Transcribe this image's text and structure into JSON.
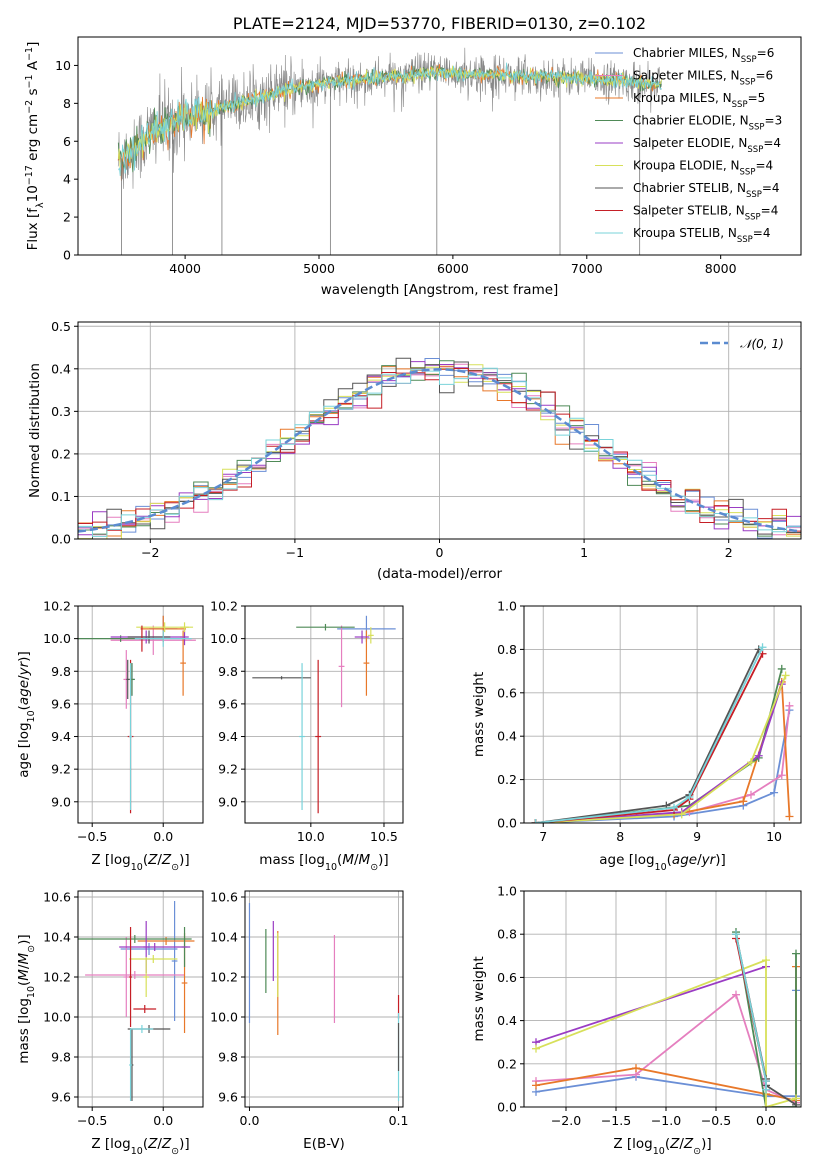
{
  "colors": {
    "chabrier_miles": "#6b8fd6",
    "salpeter_miles": "#e57fbf",
    "kroupa_miles": "#e8782a",
    "chabrier_elodie": "#4f8a57",
    "salpeter_elodie": "#9a3cc4",
    "kroupa_elodie": "#d7e05a",
    "chabrier_stelib": "#555555",
    "salpeter_stelib": "#c51f26",
    "kroupa_stelib": "#79d3da",
    "gauss": "#5b8bd0"
  },
  "chart_data": [
    {
      "id": "spectrum",
      "type": "line",
      "title": "PLATE=2124, MJD=53770, FIBERID=0130, z=0.102",
      "xlabel": "wavelength [Angstrom, rest frame]",
      "ylabel": "Flux [f_λ10^-17 erg cm^-2 s^-1 A^-1]",
      "xlim": [
        3200,
        8600
      ],
      "ylim": [
        0,
        11.5
      ],
      "xticks": [
        4000,
        5000,
        6000,
        7000,
        8000
      ],
      "yticks": [
        0,
        2,
        4,
        6,
        8,
        10
      ],
      "legend_position": "right",
      "legend": [
        {
          "label": "Chabrier MILES, N",
          "sub": "SSP",
          "n": "6"
        },
        {
          "label": "Salpeter MILES, N",
          "sub": "SSP",
          "n": "6"
        },
        {
          "label": "Kroupa MILES, N",
          "sub": "SSP",
          "n": "5"
        },
        {
          "label": "Chabrier ELODIE, N",
          "sub": "SSP",
          "n": "3"
        },
        {
          "label": "Salpeter ELODIE, N",
          "sub": "SSP",
          "n": "4"
        },
        {
          "label": "Kroupa ELODIE, N",
          "sub": "SSP",
          "n": "4"
        },
        {
          "label": "Chabrier STELIB, N",
          "sub": "SSP",
          "n": "4"
        },
        {
          "label": "Salpeter STELIB, N",
          "sub": "SSP",
          "n": "4"
        },
        {
          "label": "Kroupa STELIB, N",
          "sub": "SSP",
          "n": "4"
        }
      ],
      "continuum": [
        [
          3500,
          5.0
        ],
        [
          3600,
          5.4
        ],
        [
          3700,
          6.1
        ],
        [
          3800,
          6.8
        ],
        [
          3900,
          6.8
        ],
        [
          4000,
          7.4
        ],
        [
          4200,
          7.6
        ],
        [
          4400,
          8.0
        ],
        [
          4600,
          8.4
        ],
        [
          4800,
          8.8
        ],
        [
          5000,
          9.0
        ],
        [
          5200,
          9.2
        ],
        [
          5400,
          9.3
        ],
        [
          5600,
          9.4
        ],
        [
          5800,
          9.6
        ],
        [
          6000,
          9.6
        ],
        [
          6200,
          9.5
        ],
        [
          6400,
          9.5
        ],
        [
          6600,
          9.4
        ],
        [
          6800,
          9.4
        ],
        [
          7000,
          9.3
        ],
        [
          7200,
          9.2
        ],
        [
          7400,
          9.1
        ],
        [
          7550,
          9.0
        ]
      ],
      "absorption_dips": [
        3525,
        3905,
        4275,
        5085,
        5880,
        6800,
        7395
      ]
    },
    {
      "id": "residuals",
      "type": "histogram",
      "xlabel": "(data-model)/error",
      "ylabel": "Normed distribution",
      "xlim": [
        -2.5,
        2.5
      ],
      "ylim": [
        0,
        0.51
      ],
      "xticks": [
        -2,
        -1,
        0,
        1,
        2
      ],
      "xtick_labels": [
        "−2",
        "−1",
        "0",
        "1",
        "2"
      ],
      "yticks": [
        0.0,
        0.1,
        0.2,
        0.3,
        0.4,
        0.5
      ],
      "ytick_labels": [
        "0.0",
        "0.1",
        "0.2",
        "0.3",
        "0.4",
        "0.5"
      ],
      "bin_width": 0.1,
      "legend": [
        {
          "label": "𝒩(0, 1)"
        }
      ],
      "legend_position": "top-right",
      "gaussian": {
        "mean": 0,
        "sigma": 1
      }
    },
    {
      "id": "age_vs_Z",
      "type": "errorbar",
      "xlabel": "Z [log10(Z/Z⊙)]",
      "ylabel": "age [log10(age/yr)]",
      "xlim": [
        -0.6,
        0.28
      ],
      "ylim": [
        8.87,
        10.2
      ],
      "xticks": [
        -0.5,
        0.0
      ],
      "xtick_labels": [
        "−0.5",
        "0.0"
      ],
      "yticks": [
        9.0,
        9.2,
        9.4,
        9.6,
        9.8,
        10.0,
        10.2
      ],
      "ytick_labels": [
        "9.0",
        "9.2",
        "9.4",
        "9.6",
        "9.8",
        "10.0",
        "10.2"
      ],
      "points": [
        {
          "s": "chabrier_miles",
          "x": 0.0,
          "xe": 0.1,
          "y": 10.06,
          "ye": 0.08
        },
        {
          "s": "chabrier_miles",
          "x": -0.22,
          "xe": 0.02,
          "y": 9.75,
          "ye": 0.1
        },
        {
          "s": "salpeter_miles",
          "x": -0.07,
          "xe": 0.3,
          "y": 9.99,
          "ye": 0.09
        },
        {
          "s": "salpeter_miles",
          "x": -0.26,
          "xe": 0.02,
          "y": 9.75,
          "ye": 0.18
        },
        {
          "s": "kroupa_miles",
          "x": 0.0,
          "xe": 0.16,
          "y": 10.06,
          "ye": 0.08
        },
        {
          "s": "kroupa_miles",
          "x": 0.14,
          "xe": 0.02,
          "y": 9.85,
          "ye": 0.2
        },
        {
          "s": "chabrier_elodie",
          "x": -0.22,
          "xe": 0.02,
          "y": 9.75,
          "ye": 0.1
        },
        {
          "s": "chabrier_elodie",
          "x": -0.3,
          "xe": 0.3,
          "y": 10.0,
          "ye": 0.02
        },
        {
          "s": "salpeter_elodie",
          "x": -0.12,
          "xe": 0.25,
          "y": 10.01,
          "ye": 0.04
        },
        {
          "s": "salpeter_elodie",
          "x": 0.15,
          "xe": 0.03,
          "y": 10.01,
          "ye": 0.05
        },
        {
          "s": "kroupa_elodie",
          "x": 0.01,
          "xe": 0.2,
          "y": 10.07,
          "ye": 0.03
        },
        {
          "s": "kroupa_elodie",
          "x": 0.15,
          "xe": 0.03,
          "y": 10.07,
          "ye": 0.03
        },
        {
          "s": "chabrier_stelib",
          "x": -0.25,
          "xe": 0.01,
          "y": 9.75,
          "ye": 0.12
        },
        {
          "s": "chabrier_stelib",
          "x": -0.1,
          "xe": 0.15,
          "y": 10.01,
          "ye": 0.04
        },
        {
          "s": "salpeter_stelib",
          "x": -0.23,
          "xe": 0.02,
          "y": 9.4,
          "ye": 0.47
        },
        {
          "s": "salpeter_stelib",
          "x": -0.15,
          "xe": 0.02,
          "y": 10.0,
          "ye": 0.08
        },
        {
          "s": "kroupa_stelib",
          "x": -0.23,
          "xe": 0.01,
          "y": 9.4,
          "ye": 0.45
        },
        {
          "s": "kroupa_stelib",
          "x": 0.0,
          "xe": 0.2,
          "y": 10.0,
          "ye": 0.05
        }
      ]
    },
    {
      "id": "age_vs_mass",
      "type": "errorbar",
      "xlabel": "mass [log10(M/M⊙)]",
      "xlim": [
        9.55,
        10.63
      ],
      "ylim": [
        8.87,
        10.2
      ],
      "xticks": [
        10.0,
        10.5
      ],
      "xtick_labels": [
        "10.0",
        "10.5"
      ],
      "yticks": [
        9.0,
        9.2,
        9.4,
        9.6,
        9.8,
        10.0,
        10.2
      ],
      "ytick_labels": [
        "9.0",
        "9.2",
        "9.4",
        "9.6",
        "9.8",
        "10.0",
        "10.2"
      ],
      "points": [
        {
          "s": "chabrier_miles",
          "x": 10.38,
          "xe": 0.2,
          "y": 10.06,
          "ye": 0.08
        },
        {
          "s": "salpeter_miles",
          "x": 10.21,
          "xe": 0.02,
          "y": 9.83,
          "ye": 0.25
        },
        {
          "s": "kroupa_miles",
          "x": 10.38,
          "xe": 0.02,
          "y": 9.85,
          "ye": 0.2
        },
        {
          "s": "chabrier_elodie",
          "x": 10.1,
          "xe": 0.2,
          "y": 10.07,
          "ye": 0.02
        },
        {
          "s": "salpeter_elodie",
          "x": 10.35,
          "xe": 0.05,
          "y": 10.01,
          "ye": 0.04
        },
        {
          "s": "kroupa_elodie",
          "x": 10.41,
          "xe": 0.02,
          "y": 10.02,
          "ye": 0.05
        },
        {
          "s": "chabrier_stelib",
          "x": 9.8,
          "xe": 0.2,
          "y": 9.76,
          "ye": 0.01
        },
        {
          "s": "salpeter_stelib",
          "x": 10.05,
          "xe": 0.02,
          "y": 9.4,
          "ye": 0.47
        },
        {
          "s": "kroupa_stelib",
          "x": 9.94,
          "xe": 0.02,
          "y": 9.4,
          "ye": 0.45
        }
      ]
    },
    {
      "id": "mass_weight_vs_age",
      "type": "line",
      "xlabel": "age [log10(age/yr)]",
      "ylabel": "mass weight",
      "xlim": [
        6.75,
        10.35
      ],
      "ylim": [
        0,
        1
      ],
      "xticks": [
        7,
        8,
        9,
        10
      ],
      "xtick_labels": [
        "7",
        "8",
        "9",
        "10"
      ],
      "yticks": [
        0.0,
        0.2,
        0.4,
        0.6,
        0.8,
        1.0
      ],
      "ytick_labels": [
        "0.0",
        "0.2",
        "0.4",
        "0.6",
        "0.8",
        "1.0"
      ],
      "series": [
        {
          "s": "chabrier_miles",
          "x": [
            6.9,
            8.7,
            9.6,
            10.0,
            10.2
          ],
          "y": [
            0.0,
            0.03,
            0.08,
            0.14,
            0.52
          ]
        },
        {
          "s": "salpeter_miles",
          "x": [
            6.9,
            8.9,
            9.7,
            10.1,
            10.2
          ],
          "y": [
            0.0,
            0.05,
            0.13,
            0.22,
            0.54
          ]
        },
        {
          "s": "kroupa_miles",
          "x": [
            6.9,
            8.7,
            9.6,
            10.1,
            10.2
          ],
          "y": [
            0.0,
            0.04,
            0.1,
            0.65,
            0.03
          ]
        },
        {
          "s": "chabrier_elodie",
          "x": [
            6.9,
            8.9,
            9.8,
            10.1
          ],
          "y": [
            0.0,
            0.08,
            0.3,
            0.71
          ]
        },
        {
          "s": "salpeter_elodie",
          "x": [
            6.9,
            8.8,
            9.8,
            10.1
          ],
          "y": [
            0.0,
            0.05,
            0.31,
            0.64
          ]
        },
        {
          "s": "kroupa_elodie",
          "x": [
            6.9,
            8.8,
            9.7,
            10.15
          ],
          "y": [
            0.0,
            0.04,
            0.28,
            0.68
          ]
        },
        {
          "s": "chabrier_stelib",
          "x": [
            6.9,
            8.6,
            8.9,
            9.8
          ],
          "y": [
            0.0,
            0.08,
            0.13,
            0.8
          ]
        },
        {
          "s": "salpeter_stelib",
          "x": [
            6.9,
            8.7,
            8.9,
            9.85
          ],
          "y": [
            0.0,
            0.06,
            0.11,
            0.78
          ]
        },
        {
          "s": "kroupa_stelib",
          "x": [
            6.9,
            8.7,
            8.9,
            9.85
          ],
          "y": [
            0.0,
            0.07,
            0.12,
            0.81
          ]
        }
      ]
    },
    {
      "id": "mass_vs_Z",
      "type": "errorbar",
      "xlabel": "Z [log10(Z/Z⊙)]",
      "ylabel": "mass [log10(M/M⊙)]",
      "xlim": [
        -0.6,
        0.28
      ],
      "ylim": [
        9.55,
        10.63
      ],
      "xticks": [
        -0.5,
        0.0
      ],
      "xtick_labels": [
        "−0.5",
        "0.0"
      ],
      "yticks": [
        9.6,
        9.8,
        10.0,
        10.2,
        10.4,
        10.6
      ],
      "ytick_labels": [
        "9.6",
        "9.8",
        "10.0",
        "10.2",
        "10.4",
        "10.6"
      ],
      "points": [
        {
          "s": "chabrier_miles",
          "x": -0.1,
          "xe": 0.2,
          "y": 10.34,
          "ye": 0.03
        },
        {
          "s": "chabrier_miles",
          "x": 0.08,
          "xe": 0.02,
          "y": 10.28,
          "ye": 0.3
        },
        {
          "s": "salpeter_miles",
          "x": -0.2,
          "xe": 0.35,
          "y": 10.21,
          "ye": 0.02
        },
        {
          "s": "salpeter_miles",
          "x": -0.26,
          "xe": 0.02,
          "y": 10.2,
          "ye": 0.2
        },
        {
          "s": "kroupa_miles",
          "x": 0.02,
          "xe": 0.2,
          "y": 10.38,
          "ye": 0.02
        },
        {
          "s": "kroupa_miles",
          "x": 0.15,
          "xe": 0.02,
          "y": 10.17,
          "ye": 0.25
        },
        {
          "s": "chabrier_elodie",
          "x": -0.2,
          "xe": 0.4,
          "y": 10.39,
          "ye": 0.02
        },
        {
          "s": "chabrier_elodie",
          "x": 0.15,
          "xe": 0.02,
          "y": 10.35,
          "ye": 0.1
        },
        {
          "s": "salpeter_elodie",
          "x": -0.06,
          "xe": 0.25,
          "y": 10.35,
          "ye": 0.02
        },
        {
          "s": "salpeter_elodie",
          "x": -0.12,
          "xe": 0.02,
          "y": 10.35,
          "ye": 0.13
        },
        {
          "s": "kroupa_elodie",
          "x": -0.07,
          "xe": 0.17,
          "y": 10.29,
          "ye": 0.02
        },
        {
          "s": "kroupa_elodie",
          "x": -0.12,
          "xe": 0.02,
          "y": 10.2,
          "ye": 0.1
        },
        {
          "s": "chabrier_stelib",
          "x": -0.1,
          "xe": 0.15,
          "y": 9.94,
          "ye": 0.02
        },
        {
          "s": "chabrier_stelib",
          "x": -0.22,
          "xe": 0.01,
          "y": 9.76,
          "ye": 0.18
        },
        {
          "s": "salpeter_stelib",
          "x": -0.13,
          "xe": 0.08,
          "y": 10.04,
          "ye": 0.02
        },
        {
          "s": "salpeter_stelib",
          "x": -0.23,
          "xe": 0.01,
          "y": 10.2,
          "ye": 0.25
        },
        {
          "s": "kroupa_stelib",
          "x": -0.23,
          "xe": 0.01,
          "y": 9.76,
          "ye": 0.18
        },
        {
          "s": "kroupa_stelib",
          "x": -0.15,
          "xe": 0.08,
          "y": 9.94,
          "ye": 0.02
        }
      ]
    },
    {
      "id": "mass_vs_ebv",
      "type": "errorbar",
      "xlabel": "E(B-V)",
      "xlim": [
        -0.003,
        0.103
      ],
      "ylim": [
        9.55,
        10.63
      ],
      "xticks": [
        0.0,
        0.1
      ],
      "xtick_labels": [
        "0.0",
        "0.1"
      ],
      "yticks": [
        9.6,
        9.8,
        10.0,
        10.2,
        10.4,
        10.6
      ],
      "ytick_labels": [
        "9.6",
        "9.8",
        "10.0",
        "10.2",
        "10.4",
        "10.6"
      ],
      "points": [
        {
          "s": "chabrier_miles",
          "x": 0.0,
          "xe": 0.0,
          "y": 10.27,
          "ye": 0.3
        },
        {
          "s": "chabrier_elodie",
          "x": 0.011,
          "xe": 0.0,
          "y": 10.28,
          "ye": 0.16
        },
        {
          "s": "salpeter_elodie",
          "x": 0.016,
          "xe": 0.0,
          "y": 10.33,
          "ye": 0.15
        },
        {
          "s": "kroupa_miles",
          "x": 0.019,
          "xe": 0.0,
          "y": 10.17,
          "ye": 0.26
        },
        {
          "s": "kroupa_elodie",
          "x": 0.019,
          "xe": 0.0,
          "y": 10.26,
          "ye": 0.16
        },
        {
          "s": "salpeter_miles",
          "x": 0.057,
          "xe": 0.0,
          "y": 10.19,
          "ye": 0.22
        },
        {
          "s": "salpeter_stelib",
          "x": 0.1,
          "xe": 0.0,
          "y": 10.05,
          "ye": 0.06
        },
        {
          "s": "kroupa_stelib",
          "x": 0.1,
          "xe": 0.0,
          "y": 9.8,
          "ye": 0.22
        },
        {
          "s": "chabrier_stelib",
          "x": 0.1,
          "xe": 0.0,
          "y": 9.85,
          "ye": 0.12
        }
      ]
    },
    {
      "id": "mass_weight_vs_Z",
      "type": "line",
      "xlabel": "Z [log10(Z/Z⊙)]",
      "ylabel": "mass weight",
      "xlim": [
        -2.42,
        0.35
      ],
      "ylim": [
        0,
        1
      ],
      "xticks": [
        -2.0,
        -1.5,
        -1.0,
        -0.5,
        0.0
      ],
      "xtick_labels": [
        "−2.0",
        "−1.5",
        "−1.0",
        "−0.5",
        "0.0"
      ],
      "yticks": [
        0.0,
        0.2,
        0.4,
        0.6,
        0.8,
        1.0
      ],
      "ytick_labels": [
        "0.0",
        "0.2",
        "0.4",
        "0.6",
        "0.8",
        "1.0"
      ],
      "series": [
        {
          "s": "chabrier_miles",
          "x": [
            -2.3,
            -1.3,
            0.0,
            0.3,
            0.3
          ],
          "y": [
            0.07,
            0.14,
            0.05,
            0.05,
            0.54
          ]
        },
        {
          "s": "salpeter_miles",
          "x": [
            -2.3,
            -1.3,
            -0.3,
            0.0,
            0.3
          ],
          "y": [
            0.12,
            0.15,
            0.52,
            0.08,
            0.02
          ]
        },
        {
          "s": "kroupa_miles",
          "x": [
            -2.3,
            -1.3,
            0.0,
            0.3,
            0.3
          ],
          "y": [
            0.1,
            0.18,
            0.06,
            0.03,
            0.65
          ]
        },
        {
          "s": "chabrier_elodie",
          "x": [
            -0.3,
            0.0,
            0.3,
            0.3
          ],
          "y": [
            0.81,
            0.0,
            0.0,
            0.71
          ]
        },
        {
          "s": "salpeter_elodie",
          "x": [
            -2.3,
            0.0
          ],
          "y": [
            0.3,
            0.65
          ]
        },
        {
          "s": "kroupa_elodie",
          "x": [
            -2.3,
            0.0,
            0.0,
            0.3
          ],
          "y": [
            0.27,
            0.68,
            0.0,
            0.04
          ]
        },
        {
          "s": "chabrier_stelib",
          "x": [
            -0.3,
            0.0,
            0.0,
            0.3
          ],
          "y": [
            0.8,
            0.13,
            0.1,
            0.01
          ]
        },
        {
          "s": "salpeter_stelib",
          "x": [
            -0.3,
            0.0
          ],
          "y": [
            0.78,
            0.12
          ]
        },
        {
          "s": "kroupa_stelib",
          "x": [
            -0.3,
            0.0,
            0.0
          ],
          "y": [
            0.8,
            0.12,
            0.08
          ]
        }
      ]
    }
  ]
}
